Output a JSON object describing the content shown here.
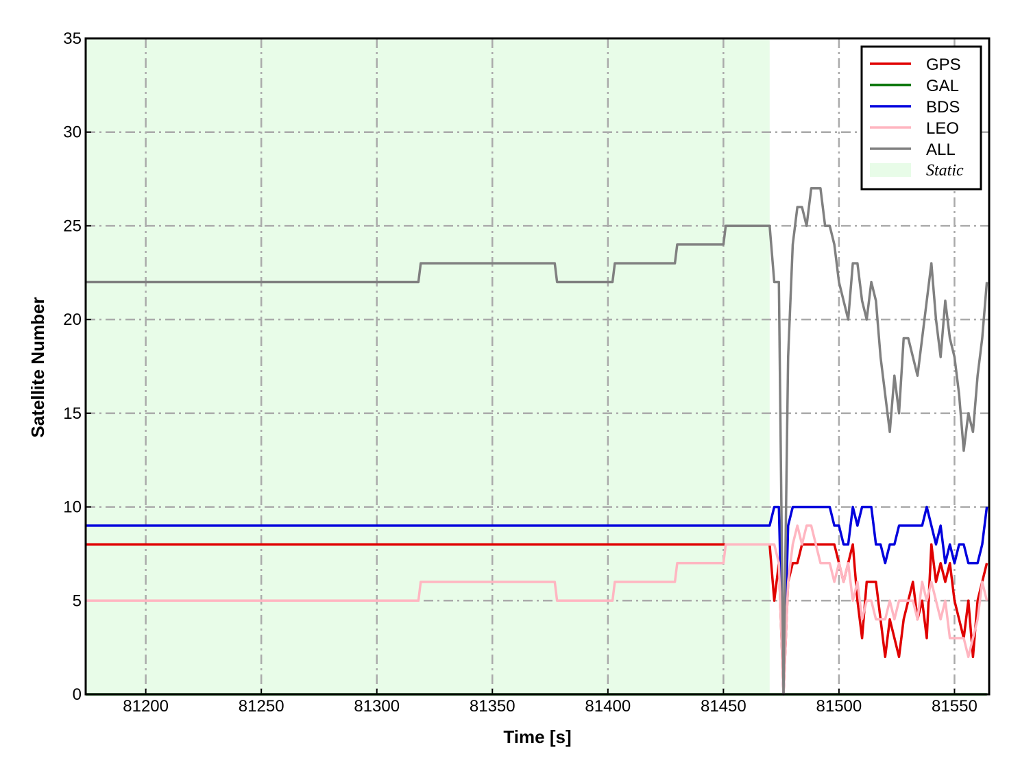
{
  "chart_data": {
    "type": "line",
    "xlabel": "Time [s]",
    "ylabel": "Satellite Number",
    "xlim": [
      81174,
      81565
    ],
    "ylim": [
      0,
      35
    ],
    "xticks": [
      81200,
      81250,
      81300,
      81350,
      81400,
      81450,
      81500,
      81550
    ],
    "yticks": [
      0,
      5,
      10,
      15,
      20,
      25,
      30,
      35
    ],
    "grid": true,
    "legend": "upper right",
    "shaded_regions": [
      {
        "name": "Static",
        "color": "#e8fce8",
        "x": [
          81174,
          81470
        ]
      }
    ],
    "x": [
      81174,
      81318,
      81319,
      81377,
      81378,
      81402,
      81403,
      81429,
      81430,
      81450,
      81451,
      81470,
      81472,
      81474,
      81476,
      81478,
      81480,
      81482,
      81484,
      81486,
      81488,
      81490,
      81492,
      81494,
      81496,
      81498,
      81500,
      81502,
      81504,
      81506,
      81508,
      81510,
      81512,
      81514,
      81516,
      81518,
      81520,
      81522,
      81524,
      81526,
      81528,
      81530,
      81532,
      81534,
      81536,
      81538,
      81540,
      81542,
      81544,
      81546,
      81548,
      81550,
      81552,
      81554,
      81556,
      81558,
      81560,
      81562,
      81564
    ],
    "series": [
      {
        "name": "GPS",
        "color": "#e00000",
        "values": [
          8,
          8,
          8,
          8,
          8,
          8,
          8,
          8,
          8,
          8,
          8,
          8,
          5,
          7,
          0,
          6,
          7,
          7,
          8,
          8,
          8,
          8,
          8,
          8,
          8,
          8,
          7,
          6,
          7,
          8,
          5,
          3,
          6,
          6,
          6,
          4,
          2,
          4,
          3,
          2,
          4,
          5,
          6,
          4,
          5,
          3,
          8,
          6,
          7,
          6,
          7,
          5,
          4,
          3,
          5,
          2,
          5,
          6,
          7
        ]
      },
      {
        "name": "GAL",
        "color": "#007000",
        "values": [
          0,
          0,
          0,
          0,
          0,
          0,
          0,
          0,
          0,
          0,
          0,
          0,
          0,
          0,
          0,
          0,
          0,
          0,
          0,
          0,
          0,
          0,
          0,
          0,
          0,
          0,
          0,
          0,
          0,
          0,
          0,
          0,
          0,
          0,
          0,
          0,
          0,
          0,
          0,
          0,
          0,
          0,
          0,
          0,
          0,
          0,
          0,
          0,
          0,
          0,
          0,
          0,
          0,
          0,
          0,
          0,
          0,
          0,
          0
        ]
      },
      {
        "name": "BDS",
        "color": "#0000dd",
        "values": [
          9,
          9,
          9,
          9,
          9,
          9,
          9,
          9,
          9,
          9,
          9,
          9,
          10,
          10,
          0,
          9,
          10,
          10,
          10,
          10,
          10,
          10,
          10,
          10,
          10,
          9,
          9,
          8,
          8,
          10,
          9,
          10,
          10,
          10,
          8,
          8,
          7,
          8,
          8,
          9,
          9,
          9,
          9,
          9,
          9,
          10,
          9,
          8,
          9,
          7,
          8,
          7,
          8,
          8,
          7,
          7,
          7,
          8,
          10
        ]
      },
      {
        "name": "LEO",
        "color": "#ffb6c1",
        "values": [
          5,
          5,
          6,
          6,
          5,
          5,
          6,
          6,
          7,
          7,
          8,
          8,
          8,
          7,
          0,
          6,
          8,
          9,
          8,
          9,
          9,
          8,
          7,
          7,
          7,
          6,
          7,
          6,
          7,
          5,
          6,
          4,
          5,
          5,
          4,
          4,
          4,
          5,
          4,
          5,
          5,
          5,
          5,
          4,
          6,
          5,
          6,
          5,
          4,
          5,
          3,
          3,
          3,
          3,
          2,
          3,
          4,
          6,
          5
        ]
      },
      {
        "name": "ALL",
        "color": "#808080",
        "values": [
          22,
          22,
          23,
          23,
          22,
          22,
          23,
          23,
          24,
          24,
          25,
          25,
          22,
          22,
          0,
          18,
          24,
          26,
          26,
          25,
          27,
          27,
          27,
          25,
          25,
          24,
          22,
          21,
          20,
          23,
          23,
          21,
          20,
          22,
          21,
          18,
          16,
          14,
          17,
          15,
          19,
          19,
          18,
          17,
          19,
          21,
          23,
          20,
          18,
          21,
          19,
          18,
          16,
          13,
          15,
          14,
          17,
          19,
          22
        ]
      }
    ]
  }
}
